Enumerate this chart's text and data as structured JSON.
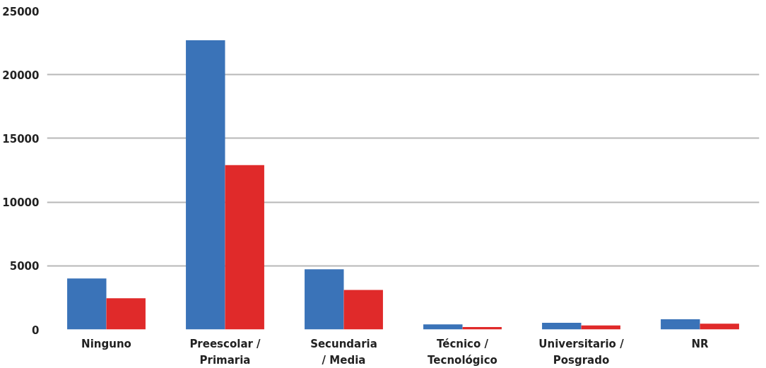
{
  "chart_data": {
    "type": "bar",
    "categories": [
      "Ninguno",
      "Preescolar / Primaria",
      "Secundaria / Media",
      "Técnico / Tecnológico",
      "Universitario / Posgrado",
      "NR"
    ],
    "series": [
      {
        "color": "#3a73b8",
        "values": [
          4000,
          22700,
          4720,
          400,
          530,
          810
        ]
      },
      {
        "color": "#e02a2a",
        "values": [
          2450,
          12900,
          3100,
          200,
          320,
          460
        ]
      }
    ],
    "ylim": [
      0,
      25000
    ],
    "yticks": [
      0,
      5000,
      10000,
      15000,
      20000,
      25000
    ],
    "grid": "y"
  }
}
